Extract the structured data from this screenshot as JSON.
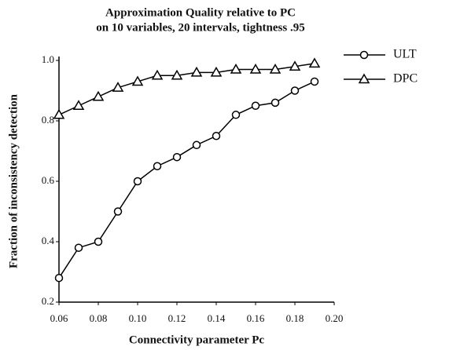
{
  "chart_data": {
    "type": "line",
    "title": [
      "Approximation Quality relative to PC",
      "on 10 variables, 20 intervals, tightness .95"
    ],
    "xlabel": "Connectivity parameter Pc",
    "ylabel": "Fraction of inconsistency detection",
    "x": [
      0.06,
      0.07,
      0.08,
      0.09,
      0.1,
      0.11,
      0.12,
      0.13,
      0.14,
      0.15,
      0.16,
      0.17,
      0.18,
      0.19
    ],
    "series": [
      {
        "name": "ULT",
        "color": "#000000",
        "marker": "circle",
        "values": [
          0.28,
          0.38,
          0.4,
          0.5,
          0.6,
          0.65,
          0.68,
          0.72,
          0.75,
          0.82,
          0.85,
          0.86,
          0.9,
          0.93
        ]
      },
      {
        "name": "DPC",
        "color": "#000000",
        "marker": "triangle",
        "values": [
          0.82,
          0.85,
          0.88,
          0.91,
          0.93,
          0.95,
          0.95,
          0.96,
          0.96,
          0.97,
          0.97,
          0.97,
          0.98,
          0.99
        ]
      }
    ],
    "xlim": [
      0.06,
      0.2
    ],
    "xticks": [
      0.06,
      0.08,
      {
        "value": 0.1,
        "label": "0.10"
      },
      0.12,
      0.14,
      0.16,
      0.18,
      {
        "value": 0.2,
        "label": "0.20"
      }
    ],
    "ylim": [
      0.2,
      1.0
    ],
    "yticks": [
      0.2,
      0.4,
      0.6,
      0.8,
      {
        "value": 1.0,
        "label": "1.0"
      }
    ],
    "legend": "outside-right"
  }
}
